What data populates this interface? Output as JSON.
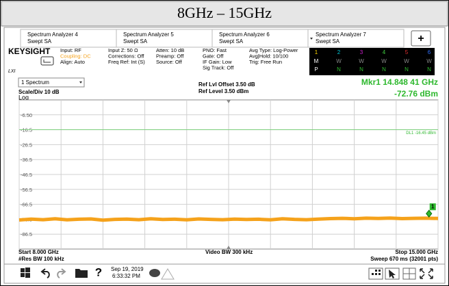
{
  "header": {
    "title": "8GHz – 15GHz"
  },
  "tabs": [
    {
      "line1": "Spectrum Analyzer 4",
      "line2": "Swept SA"
    },
    {
      "line1": "Spectrum Analyzer 5",
      "line2": "Swept SA"
    },
    {
      "line1": "Spectrum Analyzer 6",
      "line2": "Swept SA"
    },
    {
      "line1": "Spectrum Analyzer 7",
      "line2": "Swept SA"
    }
  ],
  "add_tab": "+",
  "info": {
    "logo": "KEYSIGHT",
    "lxi": "LXI",
    "columns": [
      [
        "Input: RF",
        "Coupling: DC",
        "Align: Auto"
      ],
      [
        "Input Z: 50 Ω",
        "Corrections: Off",
        "Freq Ref: Int (S)"
      ],
      [
        "Atten: 10 dB",
        "Preamp: Off",
        "Source: Off"
      ],
      [
        "PNO: Fast",
        "Gate: Off",
        "IF Gain: Low",
        "Sig Track: Off"
      ],
      [
        "Avg Type: Log-Power",
        "Avg|Hold: 10/100",
        "Trig: Free Run"
      ]
    ],
    "trace_table": {
      "numbers": [
        "1",
        "2",
        "3",
        "4",
        "5",
        "6"
      ],
      "colors": [
        "#ffd800",
        "#00c8d8",
        "#d020d0",
        "#40d040",
        "#e03030",
        "#3070ff"
      ],
      "mode_row": [
        "M",
        "W",
        "W",
        "W",
        "W",
        "W"
      ],
      "det_row": [
        "P",
        "N",
        "N",
        "N",
        "N",
        "N"
      ]
    }
  },
  "graph": {
    "window": "1 Spectrum",
    "scale": "Scale/Div 10 dB",
    "log": "Log",
    "ref_offset": "Ref Lvl Offset 3.50 dB",
    "ref_level": "Ref Level 3.50 dBm",
    "marker": {
      "freq_text": "Mkr1 14.848 41 GHz",
      "level_text": "-72.76 dBm",
      "label": "1",
      "x": 14.84841,
      "value": -72.76
    },
    "display_line": {
      "label": "DL1 -16.45 dBm",
      "value": -16.45
    },
    "xlim": [
      8,
      15
    ],
    "ylim": [
      -96.5,
      3.5
    ],
    "xticks": [
      8,
      8.7,
      9.4,
      10.1,
      10.8,
      11.5,
      12.2,
      12.9,
      13.6,
      14.3,
      15
    ],
    "yticks": [
      {
        "value": -6.5,
        "label": "-6.50"
      },
      -16.5,
      -26.5,
      -36.5,
      -46.5,
      -56.5,
      -66.5,
      -76.5,
      -86.5
    ],
    "trace": {
      "color": "#f5a21b",
      "x": [
        8.0,
        8.2,
        8.4,
        8.6,
        8.8,
        9.0,
        9.2,
        9.4,
        9.6,
        9.8,
        10.0,
        10.2,
        10.4,
        10.6,
        10.8,
        11.0,
        11.2,
        11.4,
        11.6,
        11.8,
        12.0,
        12.2,
        12.4,
        12.6,
        12.8,
        13.0,
        13.2,
        13.4,
        13.6,
        13.8,
        14.0,
        14.2,
        14.4,
        14.6,
        14.8,
        15.0
      ],
      "values": [
        -77.0,
        -76.4,
        -76.8,
        -76.2,
        -76.9,
        -76.5,
        -76.3,
        -77.1,
        -76.6,
        -76.4,
        -76.8,
        -76.2,
        -76.7,
        -76.5,
        -76.9,
        -76.3,
        -76.6,
        -76.8,
        -76.4,
        -76.7,
        -76.5,
        -76.9,
        -76.2,
        -76.6,
        -76.8,
        -76.4,
        -76.1,
        -75.9,
        -76.2,
        -75.8,
        -76.0,
        -75.7,
        -76.1,
        -75.9,
        -75.8,
        -76.0
      ]
    },
    "start": "Start 8.000 GHz",
    "res_bw": "#Res BW 100 kHz",
    "video_bw": "Video BW 300 kHz",
    "stop": "Stop 15.000 GHz",
    "sweep": "Sweep 670 ms (32001 pts)"
  },
  "toolbar": {
    "date": "Sep 19, 2019",
    "time": "6:33:32 PM",
    "help": "?"
  }
}
